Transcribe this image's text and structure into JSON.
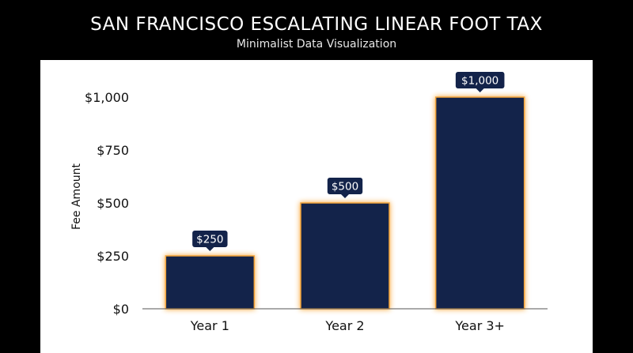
{
  "title": "SAN FRANCISCO ESCALATING LINEAR FOOT TAX",
  "subtitle": "Minimalist Data Visualization",
  "colors": {
    "background": "#000000",
    "panel": "#ffffff",
    "bar": "#13234a",
    "glow": "#f7a02a",
    "label_bg": "#13234a"
  },
  "chart_data": {
    "type": "bar",
    "title": "SAN FRANCISCO ESCALATING LINEAR FOOT TAX",
    "subtitle": "Minimalist Data Visualization",
    "xlabel": "",
    "ylabel": "Fee Amount",
    "categories": [
      "Year 1",
      "Year 2",
      "Year 3+"
    ],
    "values": [
      250,
      500,
      1000
    ],
    "data_labels": [
      "$250",
      "$500",
      "$1,000"
    ],
    "ylim": [
      0,
      1000
    ],
    "yticks": [
      0,
      250,
      500,
      750,
      1000
    ],
    "ytick_labels": [
      "$0",
      "$250",
      "$500",
      "$750",
      "$1,000"
    ],
    "grid": false,
    "legend": "none"
  }
}
